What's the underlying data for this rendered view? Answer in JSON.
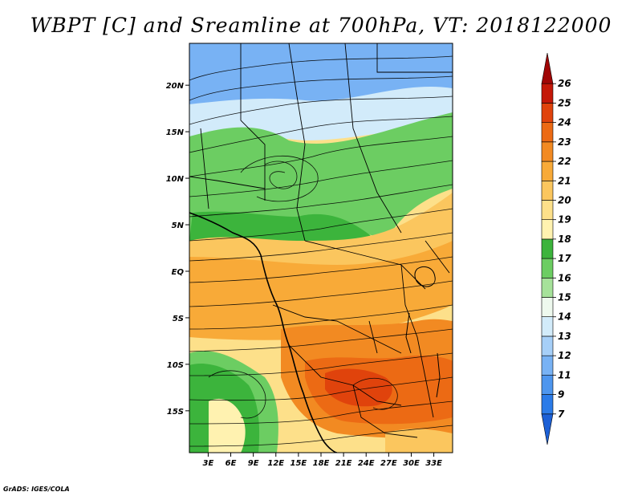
{
  "chart_data": {
    "type": "heatmap",
    "title": "WBPT [C] and Sreamline at 700hPa, VT: 2018122000",
    "variable": "WBPT",
    "units": "C",
    "overlay": "streamlines",
    "level": "700hPa",
    "valid_time": "2018122000",
    "x_ticks": [
      "3E",
      "6E",
      "9E",
      "12E",
      "15E",
      "18E",
      "21E",
      "24E",
      "27E",
      "30E",
      "33E"
    ],
    "x_tick_values": [
      3,
      6,
      9,
      12,
      15,
      18,
      21,
      24,
      27,
      30,
      33
    ],
    "y_ticks": [
      "20N",
      "15N",
      "10N",
      "5N",
      "EQ",
      "5S",
      "10S",
      "15S"
    ],
    "y_tick_values": [
      20,
      15,
      10,
      5,
      0,
      -5,
      -10,
      -15
    ],
    "xlim": [
      0.5,
      35.5
    ],
    "ylim": [
      -19.5,
      24.5
    ],
    "colorbar": {
      "labels": [
        "7",
        "9",
        "11",
        "12",
        "13",
        "14",
        "15",
        "16",
        "17",
        "18",
        "19",
        "20",
        "21",
        "22",
        "23",
        "24",
        "25",
        "26"
      ],
      "colors": [
        "#1c60d6",
        "#2b7be8",
        "#4e96ee",
        "#78b2f4",
        "#a6cff8",
        "#d2ebfa",
        "#eef9ee",
        "#a6e29a",
        "#6ccd62",
        "#3cb43c",
        "#fff2b0",
        "#fde08a",
        "#fbc65e",
        "#f8aa38",
        "#f28a22",
        "#ec6a14",
        "#e0430c",
        "#c41808",
        "#a00606"
      ]
    }
  },
  "credit": "GrADS: IGES/COLA"
}
